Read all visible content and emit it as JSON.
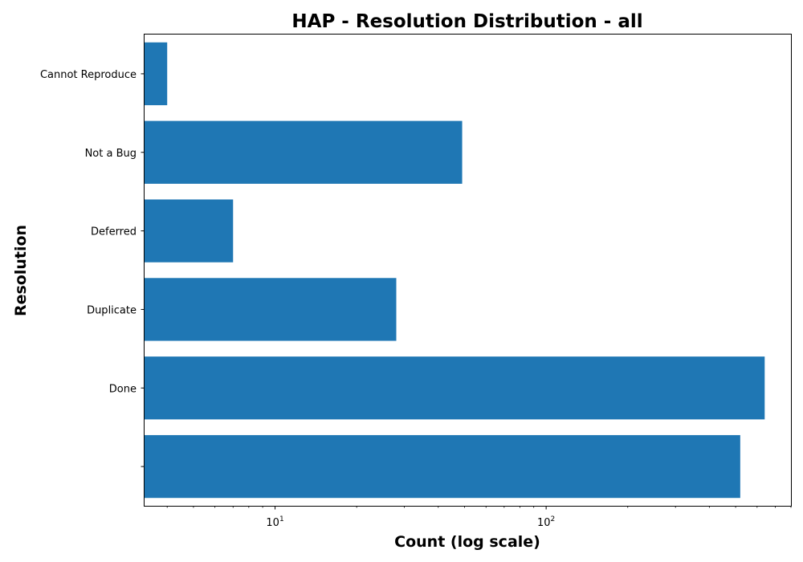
{
  "chart_data": {
    "type": "bar",
    "orientation": "horizontal",
    "title": "HAP - Resolution Distribution - all",
    "xlabel": "Count (log scale)",
    "ylabel": "Resolution",
    "xscale": "log",
    "xlim": [
      3.3,
      800
    ],
    "categories": [
      "",
      "Done",
      "Duplicate",
      "Deferred",
      "Not a Bug",
      "Cannot Reproduce"
    ],
    "values": [
      520,
      640,
      28,
      7,
      49,
      4
    ],
    "x_ticks": [
      {
        "value": 10,
        "base": "10",
        "exp": "1"
      },
      {
        "value": 100,
        "base": "10",
        "exp": "2"
      }
    ],
    "bar_color": "#1f77b4",
    "grid": false,
    "legend": "none"
  }
}
